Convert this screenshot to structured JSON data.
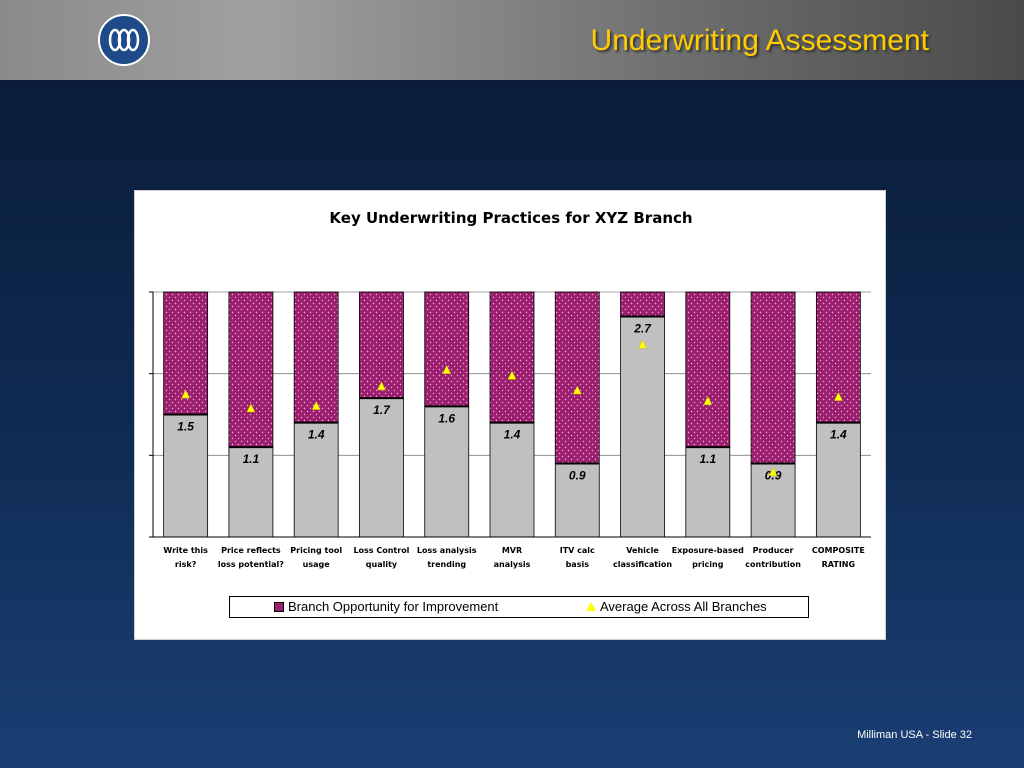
{
  "slide": {
    "title": "Underwriting Assessment",
    "footer": "Milliman USA  -  Slide 32",
    "colors": {
      "title": "#ffcc00",
      "opportunity": "#9c1f6f",
      "score": "#c0c0c0",
      "average": "#ffff00"
    }
  },
  "chart_data": {
    "type": "bar",
    "stacked": true,
    "title": "Key Underwriting Practices for XYZ Branch",
    "categories": [
      [
        "Write this",
        "risk?"
      ],
      [
        "Price reflects",
        "loss potential?"
      ],
      [
        "Pricing tool",
        "usage"
      ],
      [
        "Loss Control",
        "quality"
      ],
      [
        "Loss analysis",
        "trending"
      ],
      [
        "MVR",
        "analysis"
      ],
      [
        "ITV calc",
        "basis"
      ],
      [
        "Vehicle",
        "classification"
      ],
      [
        "Exposure-based",
        "pricing"
      ],
      [
        "Producer",
        "contribution"
      ],
      [
        "COMPOSITE",
        "RATING"
      ]
    ],
    "ylim": [
      0,
      3
    ],
    "grid": true,
    "series": [
      {
        "name": "",
        "values": [
          1.5,
          1.1,
          1.4,
          1.7,
          1.6,
          1.4,
          0.9,
          2.7,
          1.1,
          0.9,
          1.4
        ],
        "labels": [
          "1.5",
          "1.1",
          "1.4",
          "1.7",
          "1.6",
          "1.4",
          "0.9",
          "2.7",
          "1.1",
          "0.9",
          "1.4"
        ]
      },
      {
        "name": "Branch Opportunity for Improvement",
        "values": [
          1.5,
          1.9,
          1.6,
          1.3,
          1.4,
          1.6,
          2.1,
          0.3,
          1.9,
          2.1,
          1.6
        ]
      },
      {
        "name": "Average Across All Branches",
        "type": "marker",
        "values": [
          1.75,
          1.58,
          1.61,
          1.85,
          2.05,
          1.98,
          1.8,
          2.36,
          1.67,
          0.8,
          1.72
        ]
      }
    ],
    "legend": "bottom"
  }
}
